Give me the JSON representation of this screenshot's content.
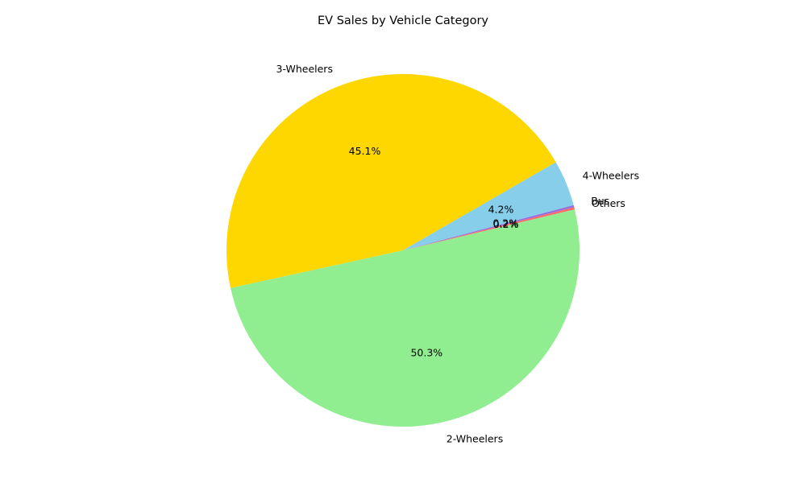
{
  "chart_data": {
    "type": "pie",
    "title": "EV Sales by Vehicle Category",
    "categories": [
      "3-Wheelers",
      "2-Wheelers",
      "Others",
      "Bus",
      "4-Wheelers"
    ],
    "values": [
      45.1,
      50.3,
      0.2,
      0.2,
      4.2
    ],
    "value_labels": [
      "45.1%",
      "50.3%",
      "0.2%",
      "0.2%",
      "4.2%"
    ],
    "colors": [
      "#FFD700",
      "#90EE90",
      "#FF6B6B",
      "#9370DB",
      "#87CEEB"
    ],
    "start_angle_deg": 30,
    "direction": "counterclockwise",
    "legend": "none"
  }
}
